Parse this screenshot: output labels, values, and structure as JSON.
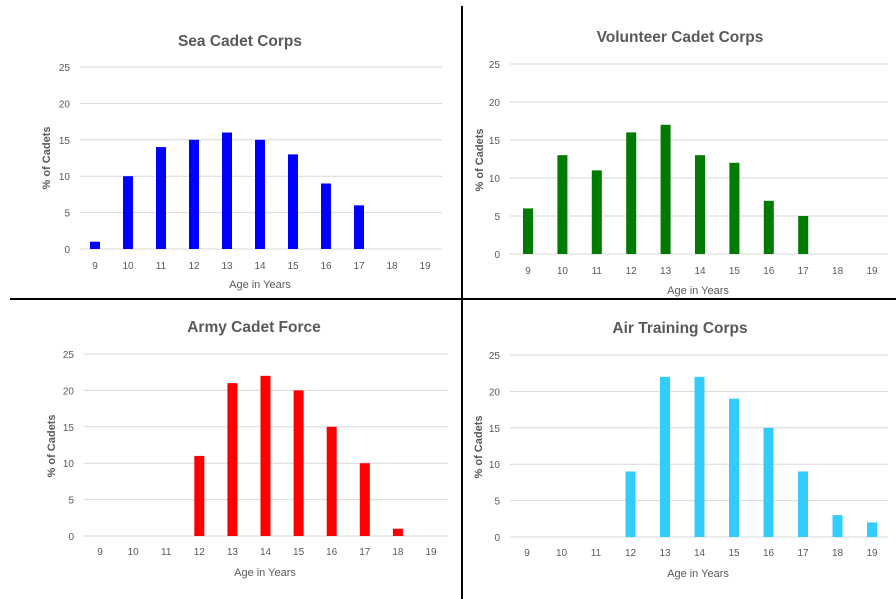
{
  "colors": {
    "sea": "#0000ff",
    "volunteer": "#007a00",
    "army": "#ff0000",
    "air": "#33ccff",
    "grid": "#d9d9d9",
    "text": "#595959",
    "divider": "#000000"
  },
  "chart_data": [
    {
      "type": "bar",
      "title": "Sea Cadet Corps",
      "xlabel": "Age in Years",
      "ylabel": "% of Cadets",
      "categories": [
        "9",
        "10",
        "11",
        "12",
        "13",
        "14",
        "15",
        "16",
        "17",
        "18",
        "19"
      ],
      "values": [
        1,
        10,
        14,
        15,
        16,
        15,
        13,
        9,
        6,
        0,
        0
      ],
      "yticks": [
        "0",
        "5",
        "10",
        "15",
        "20",
        "25"
      ],
      "ylim": [
        0,
        25
      ],
      "grid": true,
      "color": "#0000ff"
    },
    {
      "type": "bar",
      "title": "Volunteer Cadet Corps",
      "xlabel": "Age in Years",
      "ylabel": "% of Cadets",
      "categories": [
        "9",
        "10",
        "11",
        "12",
        "13",
        "14",
        "15",
        "16",
        "17",
        "18",
        "19"
      ],
      "values": [
        6,
        13,
        11,
        16,
        17,
        13,
        12,
        7,
        5,
        0,
        0
      ],
      "yticks": [
        "0",
        "5",
        "10",
        "15",
        "20",
        "25"
      ],
      "ylim": [
        0,
        25
      ],
      "grid": true,
      "color": "#007a00"
    },
    {
      "type": "bar",
      "title": "Army Cadet Force",
      "xlabel": "Age in Years",
      "ylabel": "% of Cadets",
      "categories": [
        "9",
        "10",
        "11",
        "12",
        "13",
        "14",
        "15",
        "16",
        "17",
        "18",
        "19"
      ],
      "values": [
        0,
        0,
        0,
        11,
        21,
        22,
        20,
        15,
        10,
        1,
        0
      ],
      "yticks": [
        "0",
        "5",
        "10",
        "15",
        "20",
        "25"
      ],
      "ylim": [
        0,
        25
      ],
      "grid": true,
      "color": "#ff0000"
    },
    {
      "type": "bar",
      "title": "Air Training Corps",
      "xlabel": "Age in Years",
      "ylabel": "% of Cadets",
      "categories": [
        "9",
        "10",
        "11",
        "12",
        "13",
        "14",
        "15",
        "16",
        "17",
        "18",
        "19"
      ],
      "values": [
        0,
        0,
        0,
        9,
        22,
        22,
        19,
        15,
        9,
        3,
        2
      ],
      "yticks": [
        "0",
        "5",
        "10",
        "15",
        "20",
        "25"
      ],
      "ylim": [
        0,
        25
      ],
      "grid": true,
      "color": "#33ccff"
    }
  ]
}
